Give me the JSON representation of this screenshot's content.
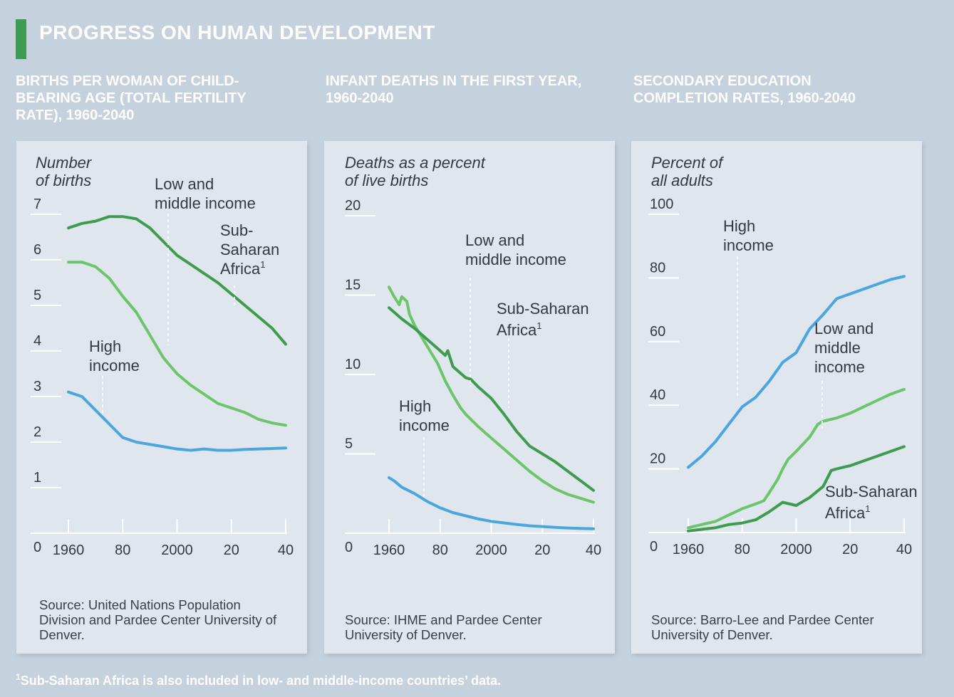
{
  "title": "PROGRESS ON HUMAN DEVELOPMENT",
  "footnote": "Sub-Saharan Africa is also included in low- and middle-income countries’ data.",
  "footnote_marker": "1",
  "colors": {
    "low_middle_income": "#6cc56a",
    "sub_saharan_africa": "#3e9b4f",
    "high_income": "#4aa6dc",
    "background": "#c5d2de",
    "panel": "#dfe6ed"
  },
  "chart_data": [
    {
      "type": "line",
      "title": "BIRTHS PER WOMAN OF CHILD-BEARING AGE (TOTAL FERTILITY RATE), 1960-2040",
      "ylabel": "Number\nof births",
      "ylim": [
        0,
        7
      ],
      "xlim": [
        1960,
        2040
      ],
      "x_ticks": [
        1960,
        1980,
        2000,
        2020,
        2040
      ],
      "x_tick_labels": [
        "1960",
        "80",
        "2000",
        "20",
        "40"
      ],
      "y_ticks": [
        0,
        1,
        2,
        3,
        4,
        5,
        6,
        7
      ],
      "y_tick_labels": [
        "0",
        "1",
        "2",
        "3",
        "4",
        "5",
        "6",
        "7"
      ],
      "grid": false,
      "source": "Source: United Nations Population Division and Pardee Center University of Denver.",
      "series": [
        {
          "name": "Sub-Saharan Africa",
          "color_key": "sub_saharan_africa",
          "points": [
            [
              1960,
              6.7
            ],
            [
              1965,
              6.8
            ],
            [
              1970,
              6.85
            ],
            [
              1975,
              6.95
            ],
            [
              1980,
              6.95
            ],
            [
              1985,
              6.9
            ],
            [
              1990,
              6.7
            ],
            [
              1995,
              6.4
            ],
            [
              2000,
              6.1
            ],
            [
              2005,
              5.9
            ],
            [
              2010,
              5.7
            ],
            [
              2015,
              5.5
            ],
            [
              2020,
              5.25
            ],
            [
              2025,
              5.0
            ],
            [
              2030,
              4.75
            ],
            [
              2035,
              4.5
            ],
            [
              2040,
              4.15
            ]
          ],
          "label": {
            "line1": "Sub-",
            "line2": "Saharan",
            "line3": "Africa",
            "sup": "1"
          }
        },
        {
          "name": "Low and middle income",
          "color_key": "low_middle_income",
          "points": [
            [
              1960,
              5.95
            ],
            [
              1965,
              5.95
            ],
            [
              1970,
              5.85
            ],
            [
              1975,
              5.6
            ],
            [
              1980,
              5.2
            ],
            [
              1985,
              4.85
            ],
            [
              1990,
              4.35
            ],
            [
              1995,
              3.85
            ],
            [
              2000,
              3.5
            ],
            [
              2005,
              3.25
            ],
            [
              2010,
              3.05
            ],
            [
              2015,
              2.85
            ],
            [
              2020,
              2.75
            ],
            [
              2025,
              2.65
            ],
            [
              2030,
              2.5
            ],
            [
              2035,
              2.42
            ],
            [
              2040,
              2.37
            ]
          ],
          "label": {
            "line1": "Low and",
            "line2": "middle income"
          }
        },
        {
          "name": "High income",
          "color_key": "high_income",
          "points": [
            [
              1960,
              3.1
            ],
            [
              1965,
              3.0
            ],
            [
              1970,
              2.7
            ],
            [
              1975,
              2.4
            ],
            [
              1980,
              2.1
            ],
            [
              1985,
              2.0
            ],
            [
              1990,
              1.95
            ],
            [
              1995,
              1.9
            ],
            [
              2000,
              1.85
            ],
            [
              2005,
              1.82
            ],
            [
              2010,
              1.85
            ],
            [
              2015,
              1.82
            ],
            [
              2020,
              1.82
            ],
            [
              2025,
              1.84
            ],
            [
              2030,
              1.85
            ],
            [
              2035,
              1.86
            ],
            [
              2040,
              1.87
            ]
          ],
          "label": {
            "line1": "High",
            "line2": "income"
          }
        }
      ]
    },
    {
      "type": "line",
      "title": "INFANT DEATHS IN THE FIRST YEAR, 1960-2040",
      "ylabel": "Deaths as a percent\nof live births",
      "ylim": [
        0,
        20
      ],
      "xlim": [
        1960,
        2040
      ],
      "x_ticks": [
        1960,
        1980,
        2000,
        2020,
        2040
      ],
      "x_tick_labels": [
        "1960",
        "80",
        "2000",
        "20",
        "40"
      ],
      "y_ticks": [
        0,
        5,
        10,
        15,
        20
      ],
      "y_tick_labels": [
        "0",
        "5",
        "10",
        "15",
        "20"
      ],
      "grid": false,
      "source": "Source: IHME and Pardee Center University of Denver.",
      "series": [
        {
          "name": "Low and middle income",
          "color_key": "low_middle_income",
          "points": [
            [
              1960,
              15.5
            ],
            [
              1962,
              14.9
            ],
            [
              1964,
              14.4
            ],
            [
              1965,
              14.9
            ],
            [
              1967,
              14.6
            ],
            [
              1968,
              13.8
            ],
            [
              1970,
              13.1
            ],
            [
              1973,
              12.3
            ],
            [
              1976,
              11.5
            ],
            [
              1979,
              10.7
            ],
            [
              1982,
              9.6
            ],
            [
              1985,
              8.7
            ],
            [
              1988,
              7.9
            ],
            [
              1990,
              7.5
            ],
            [
              1995,
              6.7
            ],
            [
              2000,
              6.0
            ],
            [
              2005,
              5.3
            ],
            [
              2010,
              4.6
            ],
            [
              2015,
              3.9
            ],
            [
              2020,
              3.3
            ],
            [
              2025,
              2.8
            ],
            [
              2030,
              2.45
            ],
            [
              2035,
              2.2
            ],
            [
              2040,
              1.95
            ]
          ],
          "label": {
            "line1": "Low and",
            "line2": "middle income"
          }
        },
        {
          "name": "Sub-Saharan Africa",
          "color_key": "sub_saharan_africa",
          "points": [
            [
              1960,
              14.2
            ],
            [
              1965,
              13.5
            ],
            [
              1970,
              12.9
            ],
            [
              1975,
              12.2
            ],
            [
              1980,
              11.5
            ],
            [
              1982,
              11.2
            ],
            [
              1983,
              11.5
            ],
            [
              1985,
              10.5
            ],
            [
              1990,
              9.8
            ],
            [
              1992,
              9.7
            ],
            [
              1995,
              9.2
            ],
            [
              2000,
              8.5
            ],
            [
              2005,
              7.5
            ],
            [
              2010,
              6.4
            ],
            [
              2015,
              5.5
            ],
            [
              2020,
              5.0
            ],
            [
              2025,
              4.5
            ],
            [
              2030,
              3.9
            ],
            [
              2035,
              3.3
            ],
            [
              2040,
              2.7
            ]
          ],
          "label": {
            "line1": "Sub-Saharan",
            "line2": "Africa",
            "sup": "1"
          }
        },
        {
          "name": "High income",
          "color_key": "high_income",
          "points": [
            [
              1960,
              3.5
            ],
            [
              1962,
              3.3
            ],
            [
              1965,
              2.9
            ],
            [
              1970,
              2.5
            ],
            [
              1975,
              2.0
            ],
            [
              1980,
              1.6
            ],
            [
              1985,
              1.3
            ],
            [
              1990,
              1.1
            ],
            [
              1995,
              0.9
            ],
            [
              2000,
              0.75
            ],
            [
              2005,
              0.65
            ],
            [
              2010,
              0.55
            ],
            [
              2015,
              0.47
            ],
            [
              2020,
              0.42
            ],
            [
              2025,
              0.37
            ],
            [
              2030,
              0.33
            ],
            [
              2035,
              0.3
            ],
            [
              2040,
              0.28
            ]
          ],
          "label": {
            "line1": "High",
            "line2": "income"
          }
        }
      ]
    },
    {
      "type": "line",
      "title": "SECONDARY EDUCATION COMPLETION RATES, 1960-2040",
      "ylabel": "Percent of\nall adults",
      "ylim": [
        0,
        100
      ],
      "xlim": [
        1960,
        2040
      ],
      "x_ticks": [
        1960,
        1980,
        2000,
        2020,
        2040
      ],
      "x_tick_labels": [
        "1960",
        "80",
        "2000",
        "20",
        "40"
      ],
      "y_ticks": [
        0,
        20,
        40,
        60,
        80,
        100
      ],
      "y_tick_labels": [
        "0",
        "20",
        "40",
        "60",
        "80",
        "100"
      ],
      "grid": false,
      "source": "Source: Barro-Lee and Pardee Center University of Denver.",
      "series": [
        {
          "name": "High income",
          "color_key": "high_income",
          "points": [
            [
              1960,
              20.5
            ],
            [
              1965,
              24
            ],
            [
              1970,
              28.5
            ],
            [
              1975,
              34
            ],
            [
              1980,
              39.5
            ],
            [
              1985,
              42.5
            ],
            [
              1990,
              47.5
            ],
            [
              1995,
              53.5
            ],
            [
              2000,
              56.5
            ],
            [
              2005,
              64
            ],
            [
              2010,
              68.5
            ],
            [
              2015,
              73.5
            ],
            [
              2020,
              75
            ],
            [
              2025,
              76.5
            ],
            [
              2030,
              78
            ],
            [
              2035,
              79.5
            ],
            [
              2040,
              80.5
            ]
          ],
          "label": {
            "line1": "High",
            "line2": "income"
          }
        },
        {
          "name": "Low and middle income",
          "color_key": "low_middle_income",
          "points": [
            [
              1960,
              1.5
            ],
            [
              1965,
              2.5
            ],
            [
              1970,
              3.5
            ],
            [
              1975,
              5.5
            ],
            [
              1980,
              7.5
            ],
            [
              1985,
              9
            ],
            [
              1988,
              10
            ],
            [
              1990,
              12.5
            ],
            [
              1993,
              16.5
            ],
            [
              1995,
              20
            ],
            [
              1997,
              23
            ],
            [
              2000,
              25.5
            ],
            [
              2005,
              30
            ],
            [
              2008,
              34
            ],
            [
              2010,
              35
            ],
            [
              2015,
              36
            ],
            [
              2020,
              37.5
            ],
            [
              2025,
              39.5
            ],
            [
              2030,
              41.5
            ],
            [
              2035,
              43.5
            ],
            [
              2040,
              45
            ]
          ],
          "label": {
            "line1": "Low and",
            "line2": "middle",
            "line3": "income"
          }
        },
        {
          "name": "Sub-Saharan Africa",
          "color_key": "sub_saharan_africa",
          "points": [
            [
              1960,
              0.5
            ],
            [
              1965,
              1
            ],
            [
              1970,
              1.5
            ],
            [
              1975,
              2.5
            ],
            [
              1980,
              3
            ],
            [
              1985,
              4
            ],
            [
              1990,
              6.5
            ],
            [
              1995,
              9.5
            ],
            [
              2000,
              8.5
            ],
            [
              2005,
              11
            ],
            [
              2010,
              14.5
            ],
            [
              2013,
              19.5
            ],
            [
              2015,
              20
            ],
            [
              2020,
              21
            ],
            [
              2025,
              22.5
            ],
            [
              2030,
              24
            ],
            [
              2035,
              25.5
            ],
            [
              2040,
              27
            ]
          ],
          "label": {
            "line1": "Sub-Saharan",
            "line2": "Africa",
            "sup": "1"
          }
        }
      ]
    }
  ]
}
